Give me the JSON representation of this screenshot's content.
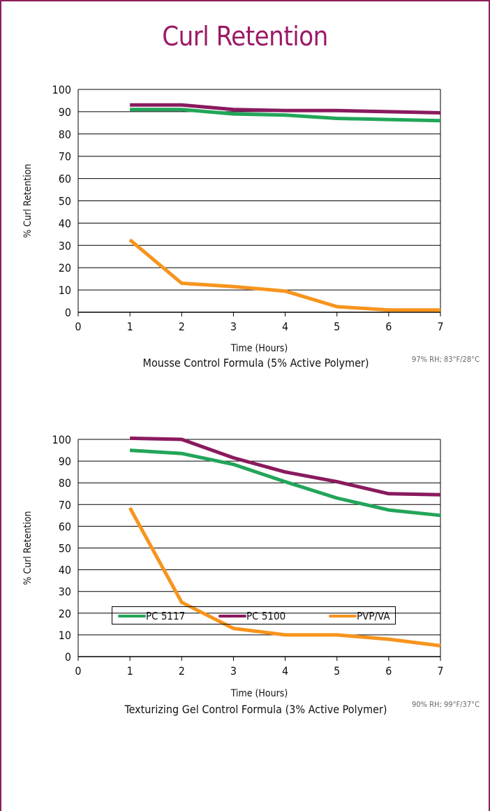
{
  "page_title": "Curl Retention",
  "colors": {
    "frame": "#8e1f5a",
    "title": "#9b1a66",
    "PC 5117": "#22a559",
    "PC 5100": "#8a1a5e",
    "PVP/VA": "#f7941d"
  },
  "legend": [
    {
      "name": "PC 5117",
      "color": "#22a559"
    },
    {
      "name": "PC 5100",
      "color": "#8a1a5e"
    },
    {
      "name": "PVP/VA",
      "color": "#f7941d"
    }
  ],
  "chart_data": [
    {
      "type": "line",
      "title": "Mousse Control Formula (5% Active Polymer)",
      "xlabel": "Time (Hours)",
      "ylabel": "% Curl Retention",
      "note": "97% RH; 83°F/28°C",
      "xlim": [
        0,
        7
      ],
      "ylim": [
        0,
        100
      ],
      "x_ticks": [
        0,
        1,
        2,
        3,
        4,
        5,
        6,
        7
      ],
      "y_ticks": [
        0,
        10,
        20,
        30,
        40,
        50,
        60,
        70,
        80,
        90,
        100
      ],
      "grid": "horizontal",
      "series": [
        {
          "name": "PC 5117",
          "color": "#22a559",
          "x": [
            1,
            2,
            3,
            4,
            5,
            6,
            7
          ],
          "y": [
            91,
            91,
            89,
            88.5,
            87,
            86.5,
            86
          ]
        },
        {
          "name": "PC 5100",
          "color": "#8a1a5e",
          "x": [
            1,
            2,
            3,
            4,
            5,
            6,
            7
          ],
          "y": [
            93,
            93,
            91,
            90.5,
            90.5,
            90,
            89.5
          ]
        },
        {
          "name": "PVP/VA",
          "color": "#f7941d",
          "x": [
            1,
            2,
            3,
            4,
            5,
            6,
            7
          ],
          "y": [
            32.5,
            13,
            11.5,
            9.5,
            2.5,
            1,
            1
          ]
        }
      ]
    },
    {
      "type": "line",
      "title": "Texturizing Gel Control Formula (3% Active Polymer)",
      "xlabel": "Time (Hours)",
      "ylabel": "% Curl Retention",
      "note": "90% RH; 99°F/37°C",
      "xlim": [
        0,
        7
      ],
      "ylim": [
        0,
        100
      ],
      "x_ticks": [
        0,
        1,
        2,
        3,
        4,
        5,
        6,
        7
      ],
      "y_ticks": [
        0,
        10,
        20,
        30,
        40,
        50,
        60,
        70,
        80,
        90,
        100
      ],
      "grid": "horizontal",
      "series": [
        {
          "name": "PC 5117",
          "color": "#22a559",
          "x": [
            1,
            2,
            3,
            4,
            5,
            6,
            7
          ],
          "y": [
            95,
            93.5,
            88.5,
            80.5,
            73,
            67.5,
            65
          ]
        },
        {
          "name": "PC 5100",
          "color": "#8a1a5e",
          "x": [
            1,
            2,
            3,
            4,
            5,
            6,
            7
          ],
          "y": [
            100.5,
            100,
            91.5,
            85,
            80.5,
            75,
            74.5
          ]
        },
        {
          "name": "PVP/VA",
          "color": "#f7941d",
          "x": [
            1,
            2,
            3,
            4,
            5,
            6,
            7
          ],
          "y": [
            68.5,
            25,
            13,
            10,
            10,
            8,
            5
          ]
        }
      ]
    }
  ]
}
